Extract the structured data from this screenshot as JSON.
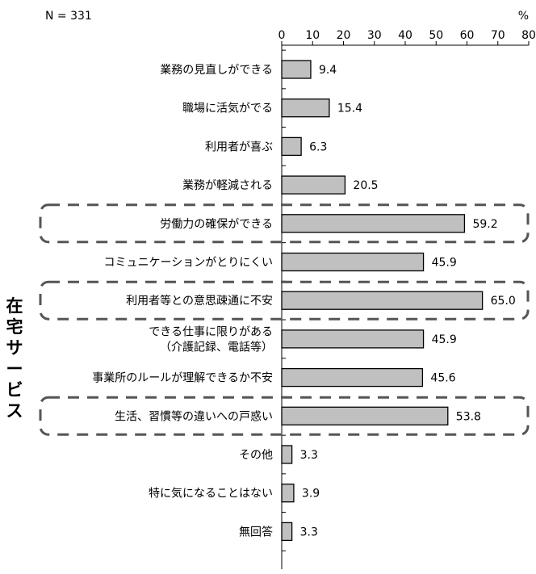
{
  "chart_data": {
    "type": "bar",
    "orientation": "horizontal",
    "sample_size_label": "N = 331",
    "unit_label": "%",
    "xlim": [
      0,
      80
    ],
    "xticks": [
      0,
      10,
      20,
      30,
      40,
      50,
      60,
      70,
      80
    ],
    "category_group_label": "在宅サービス",
    "categories": [
      [
        "業務の見直しができる"
      ],
      [
        "職場に活気がでる"
      ],
      [
        "利用者が喜ぶ"
      ],
      [
        "業務が軽減される"
      ],
      [
        "労働力の確保ができる"
      ],
      [
        "コミュニケーションがとりにくい"
      ],
      [
        "利用者等との意思疎通に不安"
      ],
      [
        "できる仕事に限りがある",
        "（介護記録、電話等）"
      ],
      [
        "事業所のルールが理解できるか不安"
      ],
      [
        "生活、習慣等の違いへの戸惑い"
      ],
      [
        "その他"
      ],
      [
        "特に気になることはない"
      ],
      [
        "無回答"
      ]
    ],
    "values": [
      9.4,
      15.4,
      6.3,
      20.5,
      59.2,
      45.9,
      65.0,
      45.9,
      45.6,
      53.8,
      3.3,
      3.9,
      3.3
    ],
    "value_labels": [
      "9.4",
      "15.4",
      "6.3",
      "20.5",
      "59.2",
      "45.9",
      "65.0",
      "45.9",
      "45.6",
      "53.8",
      "3.3",
      "3.9",
      "3.3"
    ],
    "highlighted_indices": [
      4,
      6,
      9
    ],
    "bar_color": "#c0c0c0",
    "bar_border_color": "#000000",
    "highlight_border_color": "#555555",
    "grid": false
  }
}
